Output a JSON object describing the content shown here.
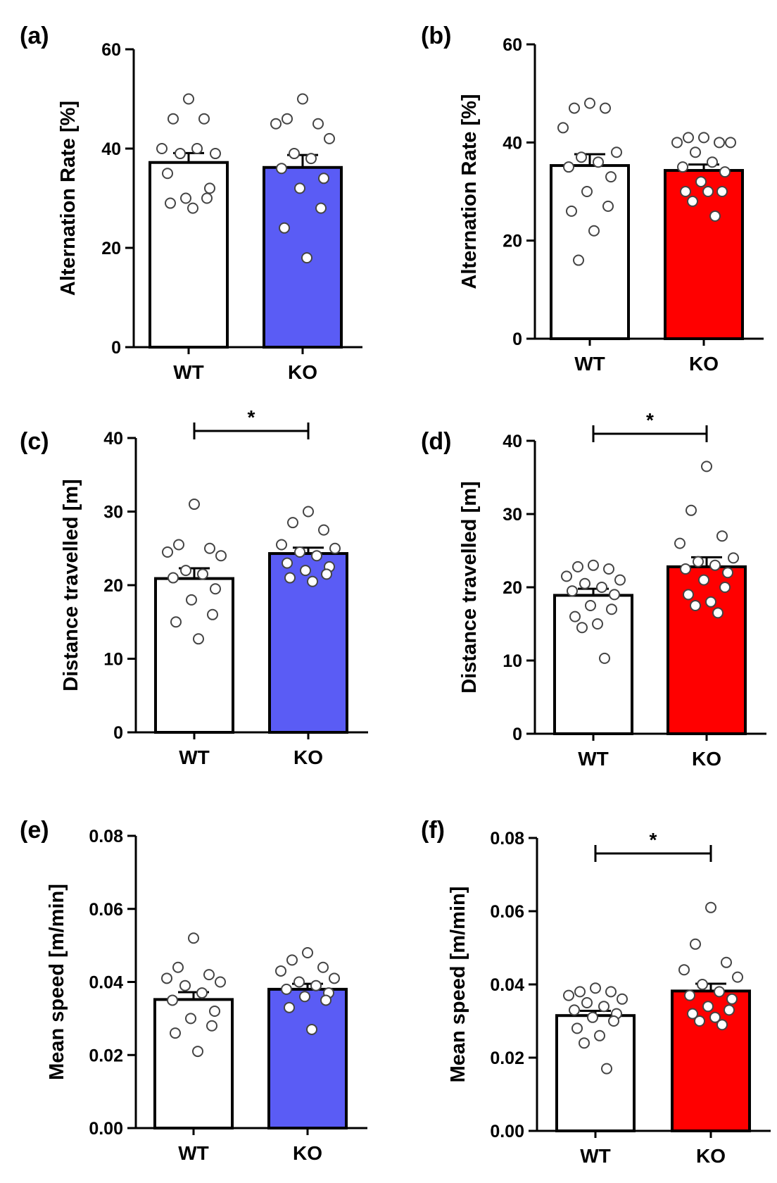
{
  "chart_data": [
    {
      "panel_label": "(a)",
      "type": "bar",
      "categories": [
        "WT",
        "KO"
      ],
      "ylabel": "Alternation Rate [%]",
      "ylim": [
        0,
        60
      ],
      "yticks": [
        "0",
        "20",
        "40",
        "60"
      ],
      "significance": null,
      "series": [
        {
          "name": "WT",
          "color": "#ffffff",
          "mean": 37.2,
          "sem": 1.9,
          "points": [
            50,
            46,
            46,
            40,
            39,
            39,
            40,
            35,
            32,
            30,
            30,
            29,
            28
          ]
        },
        {
          "name": "KO",
          "color": "#5a5cf5",
          "mean": 36.2,
          "sem": 2.5,
          "points": [
            50,
            46,
            45,
            45,
            42,
            39,
            38,
            36,
            34,
            32,
            28,
            24,
            18
          ]
        }
      ]
    },
    {
      "panel_label": "(b)",
      "type": "bar",
      "categories": [
        "WT",
        "KO"
      ],
      "ylabel": "Alternation Rate [%]",
      "ylim": [
        0,
        60
      ],
      "yticks": [
        "0",
        "20",
        "40",
        "60"
      ],
      "significance": null,
      "series": [
        {
          "name": "WT",
          "color": "#ffffff",
          "mean": 35.3,
          "sem": 2.3,
          "points": [
            48,
            47,
            47,
            43,
            38,
            37,
            36,
            35,
            33,
            30,
            27,
            26,
            22,
            16
          ]
        },
        {
          "name": "KO",
          "color": "#ff0000",
          "mean": 34.3,
          "sem": 1.2,
          "points": [
            41,
            41,
            40,
            40,
            40,
            38,
            36,
            35,
            34,
            32,
            30,
            30,
            30,
            28,
            25
          ]
        }
      ]
    },
    {
      "panel_label": "(c)",
      "type": "bar",
      "categories": [
        "WT",
        "KO"
      ],
      "ylabel": "Distance travelled [m]",
      "ylim": [
        0,
        40
      ],
      "yticks": [
        "0",
        "10",
        "20",
        "30",
        "40"
      ],
      "significance": "*",
      "series": [
        {
          "name": "WT",
          "color": "#ffffff",
          "mean": 20.9,
          "sem": 1.4,
          "points": [
            31,
            25.5,
            25,
            24.5,
            24,
            22,
            21.5,
            21,
            19.5,
            18,
            16,
            15,
            12.7
          ]
        },
        {
          "name": "KO",
          "color": "#5a5cf5",
          "mean": 24.3,
          "sem": 0.8,
          "points": [
            30,
            28.5,
            27.5,
            25.5,
            25,
            24.5,
            24,
            23,
            22.5,
            22,
            21.5,
            21,
            20.5
          ]
        }
      ]
    },
    {
      "panel_label": "(d)",
      "type": "bar",
      "categories": [
        "WT",
        "KO"
      ],
      "ylabel": "Distance travelled [m]",
      "ylim": [
        0,
        40
      ],
      "yticks": [
        "0",
        "10",
        "20",
        "30",
        "40"
      ],
      "significance": "*",
      "series": [
        {
          "name": "WT",
          "color": "#ffffff",
          "mean": 18.9,
          "sem": 0.9,
          "points": [
            23,
            22.8,
            22.5,
            21.5,
            21,
            20.5,
            20,
            19.5,
            19,
            17.5,
            17,
            16,
            15,
            14.5,
            10.3
          ]
        },
        {
          "name": "KO",
          "color": "#ff0000",
          "mean": 22.8,
          "sem": 1.3,
          "points": [
            36.5,
            30.5,
            27,
            26,
            24,
            23.5,
            23,
            22.5,
            22,
            21,
            20,
            19,
            18,
            17.5,
            16.5
          ]
        }
      ]
    },
    {
      "panel_label": "(e)",
      "type": "bar",
      "categories": [
        "WT",
        "KO"
      ],
      "ylabel": "Mean speed [m/min]",
      "ylim": [
        0,
        0.08
      ],
      "yticks": [
        "0.00",
        "0.02",
        "0.04",
        "0.06",
        "0.08"
      ],
      "significance": null,
      "series": [
        {
          "name": "WT",
          "color": "#ffffff",
          "mean": 0.0352,
          "sem": 0.002,
          "points": [
            0.052,
            0.044,
            0.042,
            0.041,
            0.04,
            0.039,
            0.037,
            0.035,
            0.032,
            0.03,
            0.028,
            0.026,
            0.021
          ]
        },
        {
          "name": "KO",
          "color": "#5a5cf5",
          "mean": 0.038,
          "sem": 0.0015,
          "points": [
            0.048,
            0.046,
            0.044,
            0.043,
            0.041,
            0.04,
            0.039,
            0.038,
            0.037,
            0.036,
            0.035,
            0.033,
            0.027
          ]
        }
      ]
    },
    {
      "panel_label": "(f)",
      "type": "bar",
      "categories": [
        "WT",
        "KO"
      ],
      "ylabel": "Mean speed [m/min]",
      "ylim": [
        0,
        0.08
      ],
      "yticks": [
        "0.00",
        "0.02",
        "0.04",
        "0.06",
        "0.08"
      ],
      "significance": "*",
      "series": [
        {
          "name": "WT",
          "color": "#ffffff",
          "mean": 0.0315,
          "sem": 0.0013,
          "points": [
            0.039,
            0.038,
            0.038,
            0.037,
            0.036,
            0.035,
            0.034,
            0.033,
            0.032,
            0.031,
            0.03,
            0.028,
            0.026,
            0.024,
            0.017
          ]
        },
        {
          "name": "KO",
          "color": "#ff0000",
          "mean": 0.0382,
          "sem": 0.002,
          "points": [
            0.061,
            0.051,
            0.046,
            0.044,
            0.042,
            0.04,
            0.038,
            0.037,
            0.036,
            0.034,
            0.033,
            0.032,
            0.031,
            0.03,
            0.029
          ]
        }
      ]
    }
  ]
}
